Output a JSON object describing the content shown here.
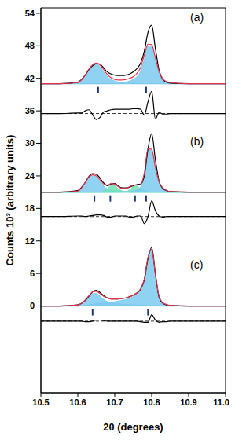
{
  "chart_data": {
    "type": "line",
    "x_label": "2θ (degrees)",
    "y_label": "Counts 10³ (arbitrary units)",
    "xlim": [
      10.5,
      11.0
    ],
    "xticks": [
      10.5,
      10.6,
      10.7,
      10.8,
      10.9,
      {
        "value": 11.0,
        "label": "11.0"
      }
    ],
    "ylim": [
      -16,
      55
    ],
    "yticks": [
      0,
      6,
      12,
      18,
      24,
      30,
      36,
      42,
      48,
      54
    ],
    "x": [
      10.5,
      10.55,
      10.6,
      10.61,
      10.62,
      10.63,
      10.64,
      10.65,
      10.66,
      10.67,
      10.68,
      10.69,
      10.7,
      10.71,
      10.72,
      10.73,
      10.74,
      10.75,
      10.76,
      10.77,
      10.78,
      10.79,
      10.8,
      10.81,
      10.82,
      10.83,
      10.84,
      10.85,
      10.9,
      10.95,
      11.0
    ],
    "panels": [
      {
        "label": "(a)",
        "background": 41,
        "difference_zero": 35.5,
        "reflections": [
          10.655,
          10.785
        ],
        "series": [
          {
            "type": "area",
            "color": "#7ccaf0",
            "values": [
              41,
              41,
              41.2,
              41.7,
              42.6,
              43.7,
              44.4,
              44.6,
              44.2,
              43.2,
              42.3,
              41.8,
              41.5,
              41.3,
              41.2,
              41.1,
              41.1,
              41.1,
              41,
              41,
              41,
              41,
              41,
              41,
              41,
              41,
              41,
              41,
              41,
              41,
              41
            ]
          },
          {
            "type": "area",
            "color": "#7ccaf0",
            "values": [
              41,
              41,
              41,
              41,
              41,
              41,
              41,
              41,
              41,
              41,
              41,
              41,
              41,
              41.1,
              41.2,
              41.3,
              41.5,
              41.8,
              42.3,
              43.3,
              45.5,
              48.0,
              47.9,
              45.3,
              42.9,
              41.8,
              41.3,
              41.1,
              41,
              41,
              41
            ]
          },
          {
            "type": "line",
            "color": "#000000",
            "values": [
              41,
              41,
              41.3,
              41.8,
              42.6,
              43.6,
              44.3,
              44.7,
              44.6,
              43.9,
              43.2,
              42.8,
              42.6,
              42.5,
              42.5,
              42.6,
              42.8,
              43.2,
              43.8,
              44.8,
              47.0,
              50.5,
              51.8,
              47.5,
              43.5,
              41.8,
              41.3,
              41.1,
              41,
              41,
              41
            ]
          },
          {
            "type": "line",
            "color": "#000000",
            "values": [
              35.5,
              35.5,
              35.6,
              35.6,
              36.0,
              36.2,
              35.3,
              34.4,
              34.8,
              35.8,
              36.0,
              36.2,
              36.3,
              36.3,
              36.3,
              36.3,
              36.3,
              36.4,
              36.4,
              36.3,
              35.2,
              37.7,
              39.6,
              34.5,
              35.7,
              35.4,
              35.4,
              35.5,
              35.5,
              35.5,
              35.5
            ]
          },
          {
            "type": "line",
            "color": "#e8314a",
            "values": [
              41,
              41,
              41.2,
              41.7,
              42.6,
              43.7,
              44.5,
              44.8,
              44.5,
              43.6,
              42.7,
              42.1,
              41.8,
              41.7,
              41.7,
              41.8,
              42.0,
              42.3,
              42.9,
              44.0,
              46.3,
              48.3,
              48.2,
              45.8,
              43.3,
              41.9,
              41.4,
              41.2,
              41,
              41,
              41
            ]
          }
        ]
      },
      {
        "label": "(b)",
        "background": 21,
        "difference_zero": 16.5,
        "reflections": [
          10.645,
          10.688,
          10.755,
          10.785
        ],
        "series": [
          {
            "type": "area",
            "color": "#7ccaf0",
            "values": [
              21,
              21,
              21.2,
              21.7,
              22.7,
              23.7,
              24.0,
              23.8,
              23.0,
              22.1,
              21.6,
              21.4,
              21.3,
              21.2,
              21.1,
              21.1,
              21,
              21,
              21,
              21,
              21,
              21,
              21,
              21,
              21,
              21,
              21,
              21,
              21,
              21,
              21
            ]
          },
          {
            "type": "area",
            "color": "#6fe3b5",
            "values": [
              21,
              21,
              21,
              21,
              21,
              21,
              21,
              21,
              21,
              21.2,
              21.6,
              22.3,
              22.2,
              21.6,
              21.2,
              21.1,
              21,
              21,
              21,
              21,
              21,
              21,
              21,
              21,
              21,
              21,
              21,
              21,
              21,
              21,
              21
            ]
          },
          {
            "type": "area",
            "color": "#6fe3b5",
            "values": [
              21,
              21,
              21,
              21,
              21,
              21,
              21,
              21,
              21,
              21,
              21,
              21,
              21,
              21,
              21,
              21.1,
              21.4,
              22.0,
              22.1,
              21.6,
              21.3,
              21.1,
              21,
              21,
              21,
              21,
              21,
              21,
              21,
              21,
              21
            ]
          },
          {
            "type": "area",
            "color": "#7ccaf0",
            "values": [
              21,
              21,
              21,
              21,
              21,
              21,
              21,
              21,
              21,
              21,
              21,
              21,
              21,
              21,
              21.1,
              21.1,
              21.1,
              21.2,
              21.4,
              22.0,
              24.0,
              28.8,
              28.7,
              25.3,
              22.7,
              21.7,
              21.3,
              21.1,
              21,
              21,
              21
            ]
          },
          {
            "type": "line",
            "color": "#000000",
            "values": [
              21,
              21,
              21.3,
              21.9,
              22.8,
              23.9,
              24.4,
              24.3,
              23.6,
              22.7,
              22.2,
              22.5,
              22.6,
              22.1,
              21.8,
              21.8,
              21.9,
              22.2,
              22.4,
              22.5,
              24.0,
              29.0,
              31.8,
              27.0,
              23.0,
              21.7,
              21.3,
              21.1,
              21,
              21,
              21
            ]
          },
          {
            "type": "line",
            "color": "#000000",
            "values": [
              16.5,
              16.5,
              16.6,
              16.6,
              16.5,
              16.6,
              16.7,
              16.8,
              16.8,
              16.7,
              16.4,
              16.4,
              16.6,
              16.6,
              16.6,
              16.6,
              16.4,
              16.4,
              16.6,
              16.6,
              15.2,
              16.5,
              19.4,
              17.6,
              16.6,
              16.4,
              16.5,
              16.5,
              16.5,
              16.5,
              16.5
            ]
          },
          {
            "type": "line",
            "color": "#e8314a",
            "values": [
              21,
              21,
              21.2,
              21.8,
              22.8,
              23.8,
              24.2,
              24.0,
              23.3,
              22.5,
              22.3,
              22.6,
              22.5,
              22.0,
              21.7,
              21.7,
              22.0,
              22.3,
              22.3,
              22.4,
              24.5,
              29.0,
              28.9,
              25.6,
              22.9,
              21.8,
              21.3,
              21.1,
              21,
              21,
              21
            ]
          }
        ]
      },
      {
        "label": "(c)",
        "background": 0,
        "difference_zero": -2.8,
        "reflections": [
          10.64,
          10.79
        ],
        "series": [
          {
            "type": "area",
            "color": "#7ccaf0",
            "values": [
              0,
              0,
              0.2,
              0.5,
              1.0,
              1.7,
              2.3,
              2.3,
              1.8,
              1.2,
              0.8,
              0.6,
              0.5,
              0.4,
              0.35,
              0.3,
              0.3,
              0.25,
              0.2,
              0.2,
              0.15,
              0.1,
              0.1,
              0.1,
              0.05,
              0,
              0,
              0,
              0,
              0,
              0
            ]
          },
          {
            "type": "area",
            "color": "#7ccaf0",
            "values": [
              0,
              0,
              0,
              0,
              0.1,
              0.2,
              0.3,
              0.4,
              0.5,
              0.6,
              0.7,
              0.7,
              0.8,
              0.9,
              1.05,
              1.2,
              1.4,
              1.75,
              2.2,
              3.0,
              4.85,
              8.9,
              10.4,
              5.7,
              1.75,
              0.6,
              0.3,
              0.1,
              0,
              0,
              0
            ]
          },
          {
            "type": "line",
            "color": "#000000",
            "values": [
              0,
              0,
              0.2,
              0.5,
              1.0,
              1.8,
              2.6,
              2.9,
              2.5,
              1.9,
              1.5,
              1.3,
              1.3,
              1.3,
              1.4,
              1.5,
              1.7,
              2.0,
              2.4,
              3.1,
              4.8,
              8.8,
              10.8,
              6.0,
              1.6,
              0.5,
              0.2,
              0.1,
              0,
              0,
              0
            ]
          },
          {
            "type": "line",
            "color": "#000000",
            "values": [
              -2.8,
              -2.8,
              -2.8,
              -2.8,
              -2.9,
              -2.9,
              -2.8,
              -2.6,
              -2.6,
              -2.7,
              -2.8,
              -2.8,
              -2.8,
              -2.8,
              -2.8,
              -2.8,
              -2.8,
              -2.8,
              -2.8,
              -2.9,
              -3.0,
              -3.0,
              -1.6,
              -2.6,
              -3.0,
              -2.9,
              -2.9,
              -2.8,
              -2.8,
              -2.8,
              -2.8
            ]
          },
          {
            "type": "line",
            "color": "#e8314a",
            "values": [
              0,
              0,
              0.2,
              0.5,
              1.1,
              1.9,
              2.6,
              2.7,
              2.3,
              1.8,
              1.5,
              1.3,
              1.3,
              1.3,
              1.4,
              1.5,
              1.7,
              2.0,
              2.4,
              3.2,
              5.0,
              9.0,
              10.5,
              5.8,
              1.8,
              0.6,
              0.3,
              0.1,
              0,
              0,
              0
            ]
          }
        ]
      }
    ]
  }
}
